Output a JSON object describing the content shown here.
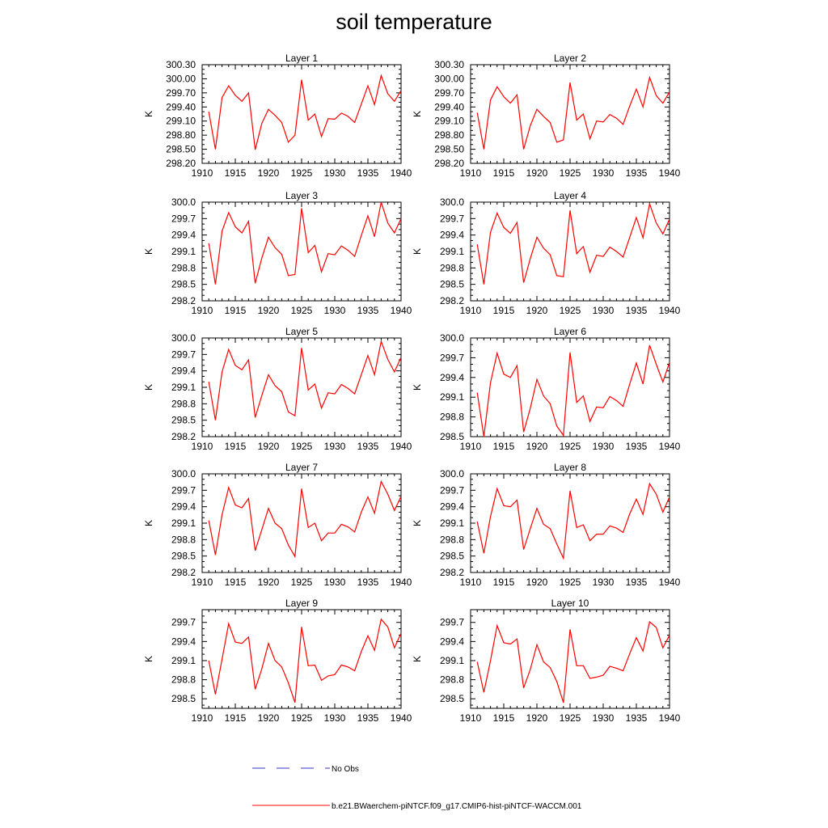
{
  "figure": {
    "title": "soil temperature",
    "legend": [
      {
        "label": "No Obs",
        "color": "#3333cc",
        "style": "dashed"
      },
      {
        "label": "b.e21.BWaerchem-piNTCF.f09_g17.CMIP6-hist-piNTCF-WACCM.001",
        "color": "#ff0000",
        "style": "solid"
      }
    ]
  },
  "chart_data": [
    {
      "type": "line",
      "title": "Layer 1",
      "ylabel": "K",
      "xlim": [
        1910,
        1940
      ],
      "x_ticks": [
        1910,
        1915,
        1920,
        1925,
        1930,
        1935,
        1940
      ],
      "ylim": [
        298.2,
        300.3
      ],
      "y_ticks": [
        "298.20",
        "298.50",
        "298.80",
        "299.10",
        "299.40",
        "299.70",
        "300.00",
        "300.30"
      ],
      "series": [
        {
          "color": "#ff0000",
          "x": [
            1911,
            1912,
            1913,
            1914,
            1915,
            1916,
            1917,
            1918,
            1919,
            1920,
            1921,
            1922,
            1923,
            1924,
            1925,
            1926,
            1927,
            1928,
            1929,
            1930,
            1931,
            1932,
            1933,
            1934,
            1935,
            1936,
            1937,
            1938,
            1939,
            1940
          ],
          "y": [
            299.3,
            298.5,
            299.6,
            299.85,
            299.65,
            299.52,
            299.7,
            298.49,
            299.05,
            299.35,
            299.22,
            299.07,
            298.65,
            298.8,
            299.98,
            299.12,
            299.25,
            298.77,
            299.15,
            299.14,
            299.27,
            299.2,
            299.07,
            299.46,
            299.85,
            299.45,
            300.07,
            299.68,
            299.52,
            299.75
          ]
        }
      ]
    },
    {
      "type": "line",
      "title": "Layer 2",
      "ylabel": "K",
      "xlim": [
        1910,
        1940
      ],
      "x_ticks": [
        1910,
        1915,
        1920,
        1925,
        1930,
        1935,
        1940
      ],
      "ylim": [
        298.2,
        300.3
      ],
      "y_ticks": [
        "298.20",
        "298.50",
        "298.80",
        "299.10",
        "299.40",
        "299.70",
        "300.00",
        "300.30"
      ],
      "series": [
        {
          "color": "#ff0000",
          "x": [
            1911,
            1912,
            1913,
            1914,
            1915,
            1916,
            1917,
            1918,
            1919,
            1920,
            1921,
            1922,
            1923,
            1924,
            1925,
            1926,
            1927,
            1928,
            1929,
            1930,
            1931,
            1932,
            1933,
            1934,
            1935,
            1936,
            1937,
            1938,
            1939,
            1940
          ],
          "y": [
            299.28,
            298.5,
            299.55,
            299.83,
            299.62,
            299.48,
            299.66,
            298.5,
            299.0,
            299.35,
            299.2,
            299.07,
            298.65,
            298.7,
            299.92,
            299.12,
            299.25,
            298.72,
            299.1,
            299.08,
            299.24,
            299.16,
            299.03,
            299.42,
            299.78,
            299.4,
            300.03,
            299.64,
            299.48,
            299.72
          ]
        }
      ]
    },
    {
      "type": "line",
      "title": "Layer 3",
      "ylabel": "K",
      "xlim": [
        1910,
        1940
      ],
      "x_ticks": [
        1910,
        1915,
        1920,
        1925,
        1930,
        1935,
        1940
      ],
      "ylim": [
        298.2,
        300.0
      ],
      "y_ticks": [
        "298.2",
        "298.5",
        "298.8",
        "299.1",
        "299.4",
        "299.7",
        "300.0"
      ],
      "series": [
        {
          "color": "#ff0000",
          "x": [
            1911,
            1912,
            1913,
            1914,
            1915,
            1916,
            1917,
            1918,
            1919,
            1920,
            1921,
            1922,
            1923,
            1924,
            1925,
            1926,
            1927,
            1928,
            1929,
            1930,
            1931,
            1932,
            1933,
            1934,
            1935,
            1936,
            1937,
            1938,
            1939,
            1940
          ],
          "y": [
            299.25,
            298.5,
            299.47,
            299.81,
            299.55,
            299.44,
            299.65,
            298.52,
            298.98,
            299.36,
            299.17,
            299.05,
            298.66,
            298.68,
            299.89,
            299.08,
            299.21,
            298.73,
            299.06,
            299.04,
            299.2,
            299.12,
            299.01,
            299.39,
            299.75,
            299.37,
            300.0,
            299.62,
            299.44,
            299.7
          ]
        }
      ]
    },
    {
      "type": "line",
      "title": "Layer 4",
      "ylabel": "K",
      "xlim": [
        1910,
        1940
      ],
      "x_ticks": [
        1910,
        1915,
        1920,
        1925,
        1930,
        1935,
        1940
      ],
      "ylim": [
        298.2,
        300.0
      ],
      "y_ticks": [
        "298.2",
        "298.5",
        "298.8",
        "299.1",
        "299.4",
        "299.7",
        "300.0"
      ],
      "series": [
        {
          "color": "#ff0000",
          "x": [
            1911,
            1912,
            1913,
            1914,
            1915,
            1916,
            1917,
            1918,
            1919,
            1920,
            1921,
            1922,
            1923,
            1924,
            1925,
            1926,
            1927,
            1928,
            1929,
            1930,
            1931,
            1932,
            1933,
            1934,
            1935,
            1936,
            1937,
            1938,
            1939,
            1940
          ],
          "y": [
            299.23,
            298.5,
            299.45,
            299.8,
            299.54,
            299.43,
            299.63,
            298.53,
            298.97,
            299.36,
            299.16,
            299.04,
            298.66,
            298.64,
            299.85,
            299.06,
            299.19,
            298.72,
            299.03,
            299.01,
            299.18,
            299.1,
            299.0,
            299.36,
            299.72,
            299.35,
            299.97,
            299.62,
            299.42,
            299.69
          ]
        }
      ]
    },
    {
      "type": "line",
      "title": "Layer 5",
      "ylabel": "K",
      "xlim": [
        1910,
        1940
      ],
      "x_ticks": [
        1910,
        1915,
        1920,
        1925,
        1930,
        1935,
        1940
      ],
      "ylim": [
        298.2,
        300.0
      ],
      "y_ticks": [
        "298.2",
        "298.5",
        "298.8",
        "299.1",
        "299.4",
        "299.7",
        "300.0"
      ],
      "series": [
        {
          "color": "#ff0000",
          "x": [
            1911,
            1912,
            1913,
            1914,
            1915,
            1916,
            1917,
            1918,
            1919,
            1920,
            1921,
            1922,
            1923,
            1924,
            1925,
            1926,
            1927,
            1928,
            1929,
            1930,
            1931,
            1932,
            1933,
            1934,
            1935,
            1936,
            1937,
            1938,
            1939,
            1940
          ],
          "y": [
            299.2,
            298.5,
            299.38,
            299.79,
            299.5,
            299.42,
            299.6,
            298.55,
            298.95,
            299.33,
            299.13,
            299.02,
            298.65,
            298.58,
            299.82,
            299.05,
            299.16,
            298.72,
            299.0,
            298.98,
            299.15,
            299.08,
            298.98,
            299.33,
            299.68,
            299.33,
            299.94,
            299.61,
            299.38,
            299.65
          ]
        }
      ]
    },
    {
      "type": "line",
      "title": "Layer 6",
      "ylabel": "K",
      "xlim": [
        1910,
        1940
      ],
      "x_ticks": [
        1910,
        1915,
        1920,
        1925,
        1930,
        1935,
        1940
      ],
      "ylim": [
        298.5,
        300.0
      ],
      "y_ticks": [
        "298.5",
        "298.8",
        "299.1",
        "299.4",
        "299.7",
        "300.0"
      ],
      "series": [
        {
          "color": "#ff0000",
          "x": [
            1911,
            1912,
            1913,
            1914,
            1915,
            1916,
            1917,
            1918,
            1919,
            1920,
            1921,
            1922,
            1923,
            1924,
            1925,
            1926,
            1927,
            1928,
            1929,
            1930,
            1931,
            1932,
            1933,
            1934,
            1935,
            1936,
            1937,
            1938,
            1939,
            1940
          ],
          "y": [
            299.17,
            298.5,
            299.32,
            299.77,
            299.45,
            299.4,
            299.58,
            298.57,
            298.93,
            299.37,
            299.12,
            299.0,
            298.66,
            298.52,
            299.78,
            299.02,
            299.12,
            298.73,
            298.95,
            298.94,
            299.11,
            299.05,
            298.96,
            299.3,
            299.62,
            299.3,
            299.89,
            299.6,
            299.33,
            299.63
          ]
        }
      ]
    },
    {
      "type": "line",
      "title": "Layer 7",
      "ylabel": "K",
      "xlim": [
        1910,
        1940
      ],
      "x_ticks": [
        1910,
        1915,
        1920,
        1925,
        1930,
        1935,
        1940
      ],
      "ylim": [
        298.2,
        300.0
      ],
      "y_ticks": [
        "298.2",
        "298.5",
        "298.8",
        "299.1",
        "299.4",
        "299.7",
        "300.0"
      ],
      "series": [
        {
          "color": "#ff0000",
          "x": [
            1911,
            1912,
            1913,
            1914,
            1915,
            1916,
            1917,
            1918,
            1919,
            1920,
            1921,
            1922,
            1923,
            1924,
            1925,
            1926,
            1927,
            1928,
            1929,
            1930,
            1931,
            1932,
            1933,
            1934,
            1935,
            1936,
            1937,
            1938,
            1939,
            1940
          ],
          "y": [
            299.15,
            298.52,
            299.25,
            299.75,
            299.43,
            299.38,
            299.55,
            298.6,
            298.98,
            299.37,
            299.1,
            299.0,
            298.7,
            298.49,
            299.73,
            299.02,
            299.1,
            298.78,
            298.92,
            298.92,
            299.08,
            299.03,
            298.94,
            299.3,
            299.58,
            299.28,
            299.86,
            299.63,
            299.33,
            299.59
          ]
        }
      ]
    },
    {
      "type": "line",
      "title": "Layer 8",
      "ylabel": "K",
      "xlim": [
        1910,
        1940
      ],
      "x_ticks": [
        1910,
        1915,
        1920,
        1925,
        1930,
        1935,
        1940
      ],
      "ylim": [
        298.2,
        300.0
      ],
      "y_ticks": [
        "298.2",
        "298.5",
        "298.8",
        "299.1",
        "299.4",
        "299.7",
        "300.0"
      ],
      "series": [
        {
          "color": "#ff0000",
          "x": [
            1911,
            1912,
            1913,
            1914,
            1915,
            1916,
            1917,
            1918,
            1919,
            1920,
            1921,
            1922,
            1923,
            1924,
            1925,
            1926,
            1927,
            1928,
            1929,
            1930,
            1931,
            1932,
            1933,
            1934,
            1935,
            1936,
            1937,
            1938,
            1939,
            1940
          ],
          "y": [
            299.13,
            298.55,
            299.22,
            299.73,
            299.42,
            299.4,
            299.52,
            298.62,
            299.0,
            299.37,
            299.08,
            299.0,
            298.72,
            298.46,
            299.69,
            299.02,
            299.07,
            298.78,
            298.9,
            298.9,
            299.05,
            299.01,
            298.93,
            299.27,
            299.54,
            299.26,
            299.82,
            299.63,
            299.3,
            299.58
          ]
        }
      ]
    },
    {
      "type": "line",
      "title": "Layer 9",
      "ylabel": "K",
      "xlim": [
        1910,
        1940
      ],
      "x_ticks": [
        1910,
        1915,
        1920,
        1925,
        1930,
        1935,
        1940
      ],
      "ylim": [
        298.35,
        299.9
      ],
      "y_ticks": [
        "298.5",
        "298.8",
        "299.1",
        "299.4",
        "299.7"
      ],
      "series": [
        {
          "color": "#ff0000",
          "x": [
            1911,
            1912,
            1913,
            1914,
            1915,
            1916,
            1917,
            1918,
            1919,
            1920,
            1921,
            1922,
            1923,
            1924,
            1925,
            1926,
            1927,
            1928,
            1929,
            1930,
            1931,
            1932,
            1933,
            1934,
            1935,
            1936,
            1937,
            1938,
            1939,
            1940
          ],
          "y": [
            299.1,
            298.57,
            299.12,
            299.68,
            299.39,
            299.37,
            299.47,
            298.65,
            298.97,
            299.37,
            299.1,
            299.0,
            298.75,
            298.44,
            299.63,
            299.02,
            299.03,
            298.79,
            298.86,
            298.88,
            299.03,
            299.0,
            298.94,
            299.24,
            299.49,
            299.26,
            299.75,
            299.63,
            299.3,
            299.53
          ]
        }
      ]
    },
    {
      "type": "line",
      "title": "Layer 10",
      "ylabel": "K",
      "xlim": [
        1910,
        1940
      ],
      "x_ticks": [
        1910,
        1915,
        1920,
        1925,
        1930,
        1935,
        1940
      ],
      "ylim": [
        298.35,
        299.9
      ],
      "y_ticks": [
        "298.5",
        "298.8",
        "299.1",
        "299.4",
        "299.7"
      ],
      "series": [
        {
          "color": "#ff0000",
          "x": [
            1911,
            1912,
            1913,
            1914,
            1915,
            1916,
            1917,
            1918,
            1919,
            1920,
            1921,
            1922,
            1923,
            1924,
            1925,
            1926,
            1927,
            1928,
            1929,
            1930,
            1931,
            1932,
            1933,
            1934,
            1935,
            1936,
            1937,
            1938,
            1939,
            1940
          ],
          "y": [
            299.08,
            298.6,
            299.1,
            299.65,
            299.38,
            299.36,
            299.44,
            298.67,
            298.96,
            299.35,
            299.08,
            298.99,
            298.77,
            298.44,
            299.59,
            299.02,
            299.02,
            298.82,
            298.84,
            298.87,
            299.01,
            298.98,
            298.94,
            299.21,
            299.46,
            299.25,
            299.71,
            299.62,
            299.3,
            299.5
          ]
        }
      ]
    }
  ]
}
